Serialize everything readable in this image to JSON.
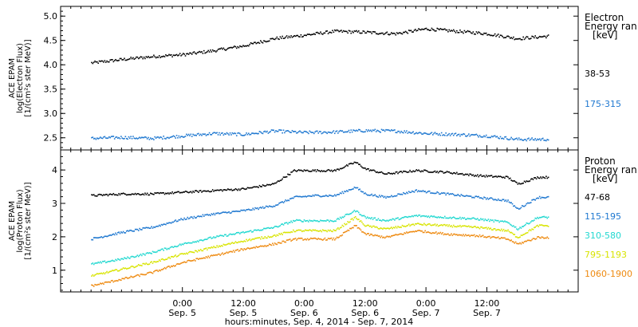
{
  "chart_data": [
    {
      "type": "scatter",
      "panel": "electron",
      "ylabel_lines": [
        "ACE EPAM",
        "log(Electron Flux)",
        "[1/(cm²s ster MeV)]"
      ],
      "ylim": [
        2.25,
        5.2
      ],
      "yticks": [
        2.5,
        3.0,
        3.5,
        4.0,
        4.5,
        5.0
      ],
      "ytick_labels": [
        "2.5",
        "3.0",
        "3.5",
        "4.0",
        "4.5",
        "5.0"
      ],
      "legend": {
        "title_lines": [
          "Electron",
          "Energy ran",
          "[keV]"
        ],
        "entries": [
          {
            "label": "38-53",
            "color": "#000000"
          },
          {
            "label": "175-315",
            "color": "#1f78d0"
          }
        ]
      },
      "x_hours": [
        0,
        6,
        12,
        18,
        24,
        30,
        36,
        42,
        48,
        54,
        60,
        66,
        72,
        78,
        84,
        90
      ],
      "series": [
        {
          "name": "38-53",
          "color": "#000000",
          "values": [
            4.05,
            4.12,
            4.18,
            4.22,
            4.3,
            4.4,
            4.55,
            4.62,
            4.7,
            4.68,
            4.65,
            4.75,
            4.7,
            4.65,
            4.55,
            4.6
          ]
        },
        {
          "name": "175-315",
          "color": "#1f78d0",
          "values": [
            2.5,
            2.52,
            2.5,
            2.55,
            2.6,
            2.58,
            2.65,
            2.62,
            2.63,
            2.66,
            2.65,
            2.6,
            2.58,
            2.55,
            2.48,
            2.48
          ]
        }
      ]
    },
    {
      "type": "scatter",
      "panel": "proton",
      "ylabel_lines": [
        "ACE EPAM",
        "log(Proton Flux)",
        "[1/(cm²s ster MeV)]"
      ],
      "ylim": [
        0.35,
        4.6
      ],
      "yticks": [
        1,
        2,
        3,
        4
      ],
      "ytick_labels": [
        "1",
        "2",
        "3",
        "4"
      ],
      "legend": {
        "title_lines": [
          "Proton",
          "Energy ran",
          "[keV]"
        ],
        "entries": [
          {
            "label": "47-68",
            "color": "#000000"
          },
          {
            "label": "115-195",
            "color": "#1f78d0"
          },
          {
            "label": "310-580",
            "color": "#22d8d0"
          },
          {
            "label": "795-1193",
            "color": "#d8e400"
          },
          {
            "label": "1060-1900",
            "color": "#ee8a10"
          }
        ]
      },
      "x_hours": [
        0,
        6,
        12,
        18,
        24,
        30,
        36,
        40,
        44,
        48,
        52,
        54,
        58,
        64,
        70,
        76,
        82,
        84,
        88,
        90
      ],
      "series": [
        {
          "name": "47-68",
          "color": "#000000",
          "values": [
            3.25,
            3.3,
            3.3,
            3.35,
            3.4,
            3.45,
            3.6,
            4.0,
            4.0,
            4.0,
            4.25,
            4.05,
            3.9,
            4.0,
            3.95,
            3.85,
            3.8,
            3.6,
            3.8,
            3.8
          ]
        },
        {
          "name": "115-195",
          "color": "#1f78d0",
          "values": [
            1.95,
            2.15,
            2.3,
            2.55,
            2.7,
            2.8,
            2.95,
            3.2,
            3.25,
            3.25,
            3.5,
            3.3,
            3.2,
            3.4,
            3.3,
            3.2,
            3.1,
            2.85,
            3.2,
            3.2
          ]
        },
        {
          "name": "310-580",
          "color": "#22d8d0",
          "values": [
            1.2,
            1.35,
            1.55,
            1.8,
            2.0,
            2.15,
            2.3,
            2.5,
            2.5,
            2.5,
            2.8,
            2.6,
            2.5,
            2.65,
            2.6,
            2.55,
            2.45,
            2.25,
            2.6,
            2.6
          ]
        },
        {
          "name": "795-1193",
          "color": "#d8e400",
          "values": [
            0.85,
            1.05,
            1.25,
            1.5,
            1.7,
            1.9,
            2.05,
            2.2,
            2.2,
            2.2,
            2.6,
            2.35,
            2.25,
            2.4,
            2.35,
            2.3,
            2.2,
            2.0,
            2.35,
            2.35
          ]
        },
        {
          "name": "1060-1900",
          "color": "#ee8a10",
          "values": [
            0.55,
            0.75,
            0.95,
            1.25,
            1.45,
            1.65,
            1.8,
            1.95,
            1.95,
            1.95,
            2.35,
            2.1,
            2.0,
            2.2,
            2.1,
            2.05,
            1.95,
            1.8,
            2.0,
            2.0
          ]
        }
      ]
    }
  ],
  "xaxis": {
    "hours_range": [
      -6,
      96
    ],
    "ticks": [
      {
        "hour": 18,
        "time": "0:00",
        "date": "Sep. 5"
      },
      {
        "hour": 30,
        "time": "12:00",
        "date": "Sep. 5"
      },
      {
        "hour": 42,
        "time": "0:00",
        "date": "Sep. 6"
      },
      {
        "hour": 54,
        "time": "12:00",
        "date": "Sep. 6"
      },
      {
        "hour": 66,
        "time": "0:00",
        "date": "Sep. 7"
      },
      {
        "hour": 78,
        "time": "12:00",
        "date": "Sep. 7"
      }
    ],
    "label": "hours:minutes, Sep.  4, 2014 - Sep.  7, 2014"
  }
}
